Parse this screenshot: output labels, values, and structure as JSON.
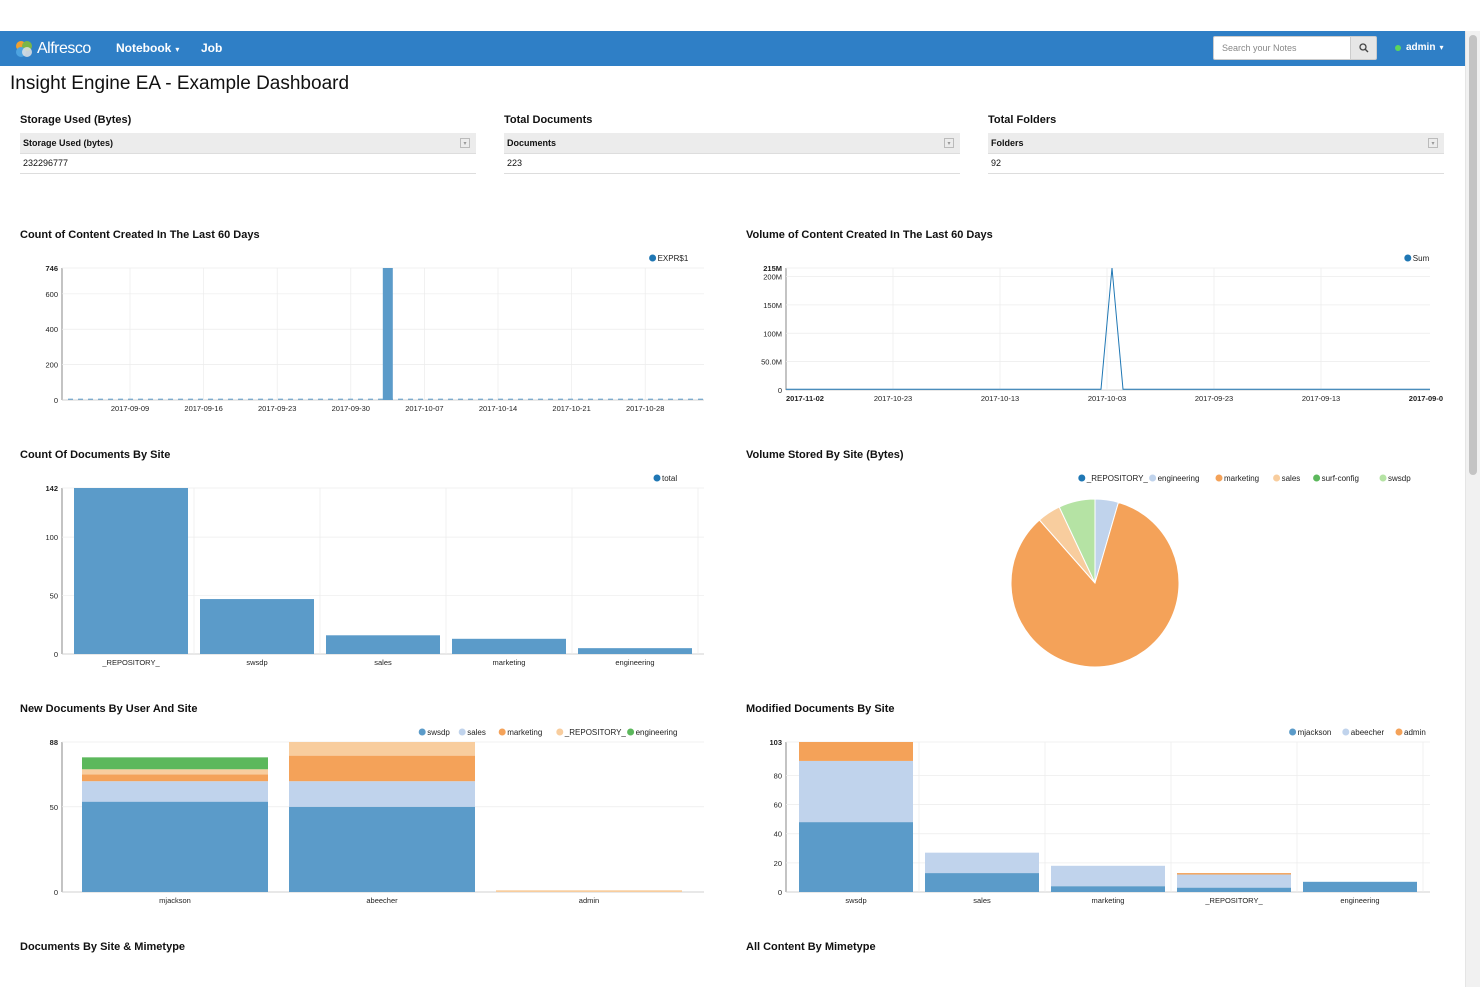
{
  "navbar": {
    "brand": "Alfresco",
    "items": [
      {
        "label": "Notebook"
      },
      {
        "label": "Job"
      }
    ],
    "search_placeholder": "Search your Notes",
    "user": "admin"
  },
  "page_title": "Insight Engine EA - Example Dashboard",
  "summary_tables": [
    {
      "title": "Storage Used (Bytes)",
      "column": "Storage Used (bytes)",
      "value": "232296777"
    },
    {
      "title": "Total Documents",
      "column": "Documents",
      "value": "223"
    },
    {
      "title": "Total Folders",
      "column": "Folders",
      "value": "92"
    }
  ],
  "paragraph_titles": {
    "count_60": "Count of Content Created In The Last 60 Days",
    "volume_60": "Volume of Content Created In The Last 60 Days",
    "docs_by_site": "Count Of Documents By Site",
    "volume_by_site": "Volume Stored By Site (Bytes)",
    "new_docs": "New Documents By User And Site",
    "modified_docs": "Modified Documents By Site",
    "site_mimetype": "Documents By Site & Mimetype",
    "all_mimetype": "All Content By Mimetype"
  },
  "colors": {
    "navbar": "#2f7fc6",
    "steel": "#5b9bc9",
    "light_blue": "#c0d3ec",
    "orange": "#f4a259",
    "peach": "#f8cd9e",
    "green": "#5cb85c",
    "light_green": "#b5e3a4",
    "dark_blue": "#1f77b4",
    "dark_orange": "#ff7f0e"
  },
  "chart_data": [
    {
      "id": "count_60",
      "type": "bar",
      "legend": [
        "EXPR$1"
      ],
      "yticks": [
        "0",
        "200",
        "400",
        "600",
        "746"
      ],
      "ylim": [
        0,
        746
      ],
      "xticks": [
        "2017-09-09",
        "2017-09-16",
        "2017-09-23",
        "2017-09-30",
        "2017-10-07",
        "2017-10-14",
        "2017-10-21",
        "2017-10-28"
      ],
      "bars": [
        {
          "x": "2017-09-30",
          "value": 746
        }
      ]
    },
    {
      "id": "volume_60",
      "type": "line",
      "legend": [
        "Sum"
      ],
      "yticks": [
        "0",
        "50.0M",
        "100M",
        "150M",
        "200M",
        "215M"
      ],
      "ylim": [
        0,
        215000000
      ],
      "xticks": [
        "2017-11-02",
        "2017-10-23",
        "2017-10-13",
        "2017-10-03",
        "2017-09-23",
        "2017-09-13",
        "2017-09-0"
      ],
      "peak": {
        "x": "2017-10-03",
        "value": 215000000
      }
    },
    {
      "id": "docs_by_site",
      "type": "bar",
      "legend": [
        "total"
      ],
      "yticks": [
        "0",
        "50",
        "100",
        "142"
      ],
      "ylim": [
        0,
        142
      ],
      "categories": [
        "_REPOSITORY_",
        "swsdp",
        "sales",
        "marketing",
        "engineering"
      ],
      "values": [
        142,
        47,
        16,
        13,
        5
      ]
    },
    {
      "id": "volume_by_site",
      "type": "pie",
      "legend": [
        "_REPOSITORY_",
        "engineering",
        "marketing",
        "sales",
        "surf-config",
        "swsdp"
      ],
      "slices": [
        {
          "name": "engineering",
          "value": 4.5
        },
        {
          "name": "marketing",
          "value": 84
        },
        {
          "name": "sales",
          "value": 4.5
        },
        {
          "name": "swsdp",
          "value": 7
        }
      ]
    },
    {
      "id": "new_docs",
      "type": "bar",
      "stacked": true,
      "legend": [
        "swsdp",
        "sales",
        "marketing",
        "_REPOSITORY_",
        "engineering"
      ],
      "yticks": [
        "0",
        "50",
        "88"
      ],
      "ylim": [
        0,
        88
      ],
      "categories": [
        "mjackson",
        "abeecher",
        "admin"
      ],
      "series": [
        {
          "name": "swsdp",
          "values": [
            53,
            50,
            0
          ]
        },
        {
          "name": "sales",
          "values": [
            12,
            15,
            0
          ]
        },
        {
          "name": "marketing",
          "values": [
            4,
            15,
            0
          ]
        },
        {
          "name": "_REPOSITORY_",
          "values": [
            3,
            8,
            1
          ]
        },
        {
          "name": "engineering",
          "values": [
            7,
            0,
            0
          ]
        }
      ]
    },
    {
      "id": "modified_docs",
      "type": "bar",
      "stacked": true,
      "legend": [
        "mjackson",
        "abeecher",
        "admin"
      ],
      "yticks": [
        "0",
        "20",
        "40",
        "60",
        "80",
        "103"
      ],
      "ylim": [
        0,
        103
      ],
      "categories": [
        "swsdp",
        "sales",
        "marketing",
        "_REPOSITORY_",
        "engineering"
      ],
      "series": [
        {
          "name": "mjackson",
          "values": [
            48,
            13,
            4,
            3,
            7
          ]
        },
        {
          "name": "abeecher",
          "values": [
            42,
            14,
            14,
            9,
            0
          ]
        },
        {
          "name": "admin",
          "values": [
            13,
            0,
            0,
            1,
            0
          ]
        }
      ]
    }
  ]
}
